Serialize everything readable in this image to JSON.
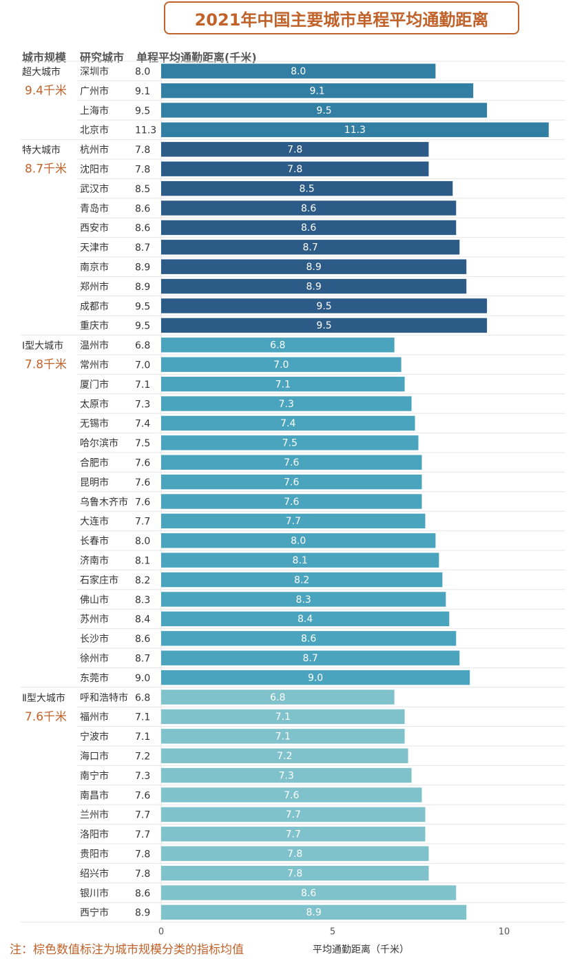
{
  "title": "2021年中国主要城市单程平均通勤距离",
  "headers": {
    "size": "城市规模",
    "city": "研究城市",
    "value": "单程平均通勤距离(千米)"
  },
  "note": "注：棕色数值标注为城市规模分类的指标均值",
  "colors": {
    "title": "#c0622a",
    "avg": "#c0622a",
    "super": "#337fa4",
    "mega": "#2d5b87",
    "type1": "#4aa4bd",
    "type2": "#7fc2cb",
    "grid": "#e4e4e4"
  },
  "chart_data": {
    "type": "bar",
    "orientation": "horizontal",
    "title": "2021年中国主要城市单程平均通勤距离",
    "xlabel": "平均通勤距离（千米）",
    "ylabel": "",
    "xlim": [
      0,
      11.5
    ],
    "xticks": [
      "0",
      "5",
      "10"
    ],
    "groups": [
      {
        "name": "超大城市",
        "avg": "9.4千米",
        "color_key": "super",
        "cities": [
          "深圳市",
          "广州市",
          "上海市",
          "北京市"
        ],
        "values": [
          8.0,
          9.1,
          9.5,
          11.3
        ],
        "labels": [
          "8.0",
          "9.1",
          "9.5",
          "11.3"
        ]
      },
      {
        "name": "特大城市",
        "avg": "8.7千米",
        "color_key": "mega",
        "cities": [
          "杭州市",
          "沈阳市",
          "武汉市",
          "青岛市",
          "西安市",
          "天津市",
          "南京市",
          "郑州市",
          "成都市",
          "重庆市"
        ],
        "values": [
          7.8,
          7.8,
          8.5,
          8.6,
          8.6,
          8.7,
          8.9,
          8.9,
          9.5,
          9.5
        ],
        "labels": [
          "7.8",
          "7.8",
          "8.5",
          "8.6",
          "8.6",
          "8.7",
          "8.9",
          "8.9",
          "9.5",
          "9.5"
        ]
      },
      {
        "name": "Ⅰ型大城市",
        "avg": "7.8千米",
        "color_key": "type1",
        "cities": [
          "温州市",
          "常州市",
          "厦门市",
          "太原市",
          "无锡市",
          "哈尔滨市",
          "合肥市",
          "昆明市",
          "乌鲁木齐市",
          "大连市",
          "长春市",
          "济南市",
          "石家庄市",
          "佛山市",
          "苏州市",
          "长沙市",
          "徐州市",
          "东莞市"
        ],
        "values": [
          6.8,
          7.0,
          7.1,
          7.3,
          7.4,
          7.5,
          7.6,
          7.6,
          7.6,
          7.7,
          8.0,
          8.1,
          8.2,
          8.3,
          8.4,
          8.6,
          8.7,
          9.0
        ],
        "labels": [
          "6.8",
          "7.0",
          "7.1",
          "7.3",
          "7.4",
          "7.5",
          "7.6",
          "7.6",
          "7.6",
          "7.7",
          "8.0",
          "8.1",
          "8.2",
          "8.3",
          "8.4",
          "8.6",
          "8.7",
          "9.0"
        ]
      },
      {
        "name": "Ⅱ型大城市",
        "avg": "7.6千米",
        "color_key": "type2",
        "cities": [
          "呼和浩特市",
          "福州市",
          "宁波市",
          "海口市",
          "南宁市",
          "南昌市",
          "兰州市",
          "洛阳市",
          "贵阳市",
          "绍兴市",
          "银川市",
          "西宁市"
        ],
        "values": [
          6.8,
          7.1,
          7.1,
          7.2,
          7.3,
          7.6,
          7.7,
          7.7,
          7.8,
          7.8,
          8.6,
          8.9
        ],
        "labels": [
          "6.8",
          "7.1",
          "7.1",
          "7.2",
          "7.3",
          "7.6",
          "7.7",
          "7.7",
          "7.8",
          "7.8",
          "8.6",
          "8.9"
        ]
      }
    ]
  }
}
